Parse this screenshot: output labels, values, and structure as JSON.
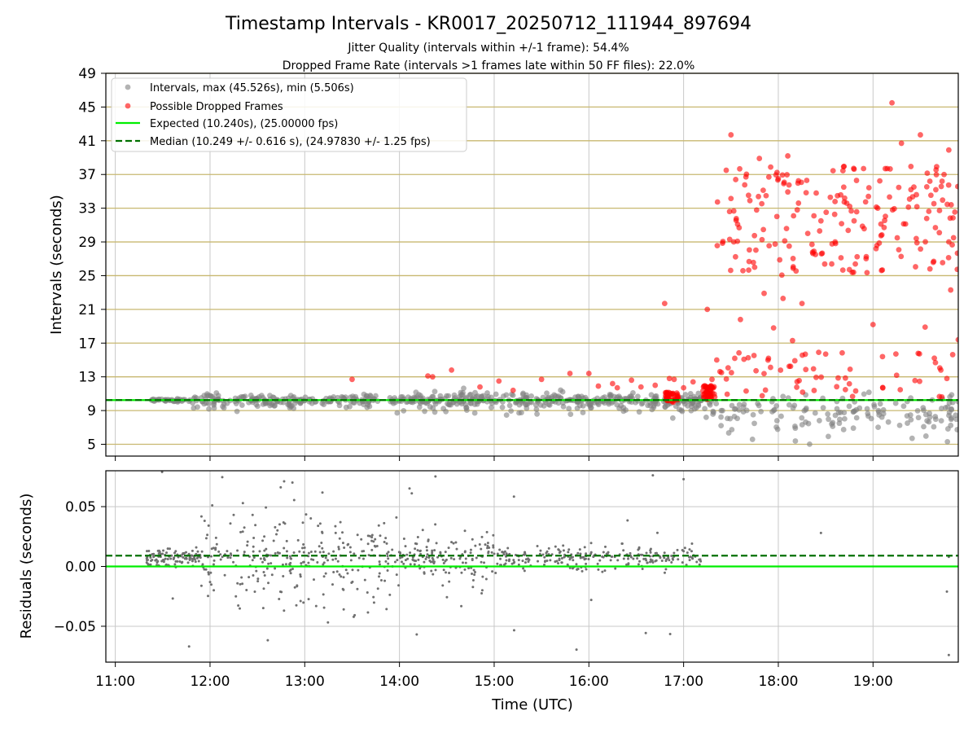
{
  "chart_data": [
    {
      "type": "scatter",
      "panel": "intervals",
      "title": "Timestamp Intervals - KR0017_20250712_111944_897694",
      "subtitle_lines": [
        "Jitter Quality (intervals within +/-1 frame): 54.4%",
        "Dropped Frame Rate (intervals >1 frames late within 50 FF files): 22.0%"
      ],
      "ylabel": "Intervals (seconds)",
      "xlim_hours": [
        10.9,
        19.9
      ],
      "ylim": [
        3.6,
        49
      ],
      "yticks": [
        5,
        9,
        13,
        17,
        21,
        25,
        29,
        33,
        37,
        41,
        45,
        49
      ],
      "grid": {
        "x": true,
        "y_color": "#c8b870"
      },
      "legend_position": "upper-left",
      "legend": [
        "Intervals, max (45.526s), min (5.506s)",
        "Possible Dropped Frames",
        "Expected (10.240s), (25.00000 fps)",
        "Median (10.249 +/- 0.616 s), (24.97830 +/- 1.25 fps)"
      ],
      "expected_interval_s": 10.24,
      "median_interval_s": 10.249,
      "max_interval_s": 45.526,
      "min_interval_s": 5.506,
      "series": [
        {
          "role": "intervals",
          "color": "#808080",
          "note": "dense band ~9.5-10.8 s from 11:20 to 17:20, scattered 5.5-11 s after 17:20",
          "bands": [
            {
              "t_start": 11.33,
              "t_end": 11.8,
              "center": 10.24,
              "spread": 0.15,
              "n": 30
            },
            {
              "t_start": 11.8,
              "t_end": 14.0,
              "center": 10.2,
              "spread": 0.7,
              "n": 180
            },
            {
              "t_start": 14.0,
              "t_end": 16.0,
              "center": 10.2,
              "spread": 0.8,
              "n": 220
            },
            {
              "t_start": 16.0,
              "t_end": 17.3,
              "center": 10.1,
              "spread": 0.9,
              "n": 140
            },
            {
              "t_start": 17.3,
              "t_end": 19.9,
              "center": 8.8,
              "spread": 1.8,
              "n": 150
            }
          ]
        },
        {
          "role": "dropped_frames",
          "color": "#ff0000",
          "points": [
            [
              13.5,
              12.7
            ],
            [
              14.3,
              13.1
            ],
            [
              14.35,
              13.0
            ],
            [
              14.55,
              13.8
            ],
            [
              14.85,
              11.8
            ],
            [
              15.05,
              12.5
            ],
            [
              15.2,
              11.4
            ],
            [
              15.5,
              12.7
            ],
            [
              15.8,
              13.4
            ],
            [
              16.0,
              13.4
            ],
            [
              16.1,
              11.9
            ],
            [
              16.25,
              12.2
            ],
            [
              16.3,
              11.7
            ],
            [
              16.45,
              12.6
            ],
            [
              16.55,
              11.8
            ],
            [
              16.7,
              12.0
            ],
            [
              16.8,
              21.7
            ],
            [
              16.85,
              12.8
            ],
            [
              16.9,
              12.7
            ],
            [
              17.0,
              11.7
            ],
            [
              17.1,
              12.4
            ],
            [
              17.25,
              21.0
            ],
            [
              17.3,
              12.7
            ],
            [
              17.35,
              15.0
            ],
            [
              17.4,
              13.5
            ],
            [
              17.45,
              37.5
            ],
            [
              17.5,
              41.7
            ],
            [
              17.55,
              36.4
            ],
            [
              17.6,
              19.8
            ],
            [
              17.7,
              33.9
            ],
            [
              17.75,
              26.0
            ],
            [
              17.8,
              38.9
            ],
            [
              17.85,
              22.9
            ],
            [
              17.9,
              36.7
            ],
            [
              17.95,
              18.8
            ],
            [
              18.0,
              36.5
            ],
            [
              18.05,
              22.3
            ],
            [
              18.1,
              39.2
            ],
            [
              18.15,
              17.3
            ],
            [
              18.2,
              32.8
            ],
            [
              18.25,
              21.7
            ],
            [
              18.3,
              36.3
            ],
            [
              18.4,
              34.8
            ],
            [
              18.45,
              31.5
            ],
            [
              18.5,
              15.7
            ],
            [
              18.6,
              29.0
            ],
            [
              18.7,
              34.2
            ],
            [
              18.8,
              31.5
            ],
            [
              18.9,
              37.7
            ],
            [
              19.0,
              19.2
            ],
            [
              19.05,
              33.0
            ],
            [
              19.1,
              15.4
            ],
            [
              19.15,
              37.7
            ],
            [
              19.2,
              45.5
            ],
            [
              19.3,
              40.7
            ],
            [
              19.4,
              35.2
            ],
            [
              19.5,
              41.7
            ],
            [
              19.55,
              18.9
            ],
            [
              19.6,
              36.2
            ],
            [
              19.7,
              30.1
            ],
            [
              19.75,
              37.0
            ],
            [
              19.8,
              39.9
            ],
            [
              19.82,
              23.3
            ],
            [
              19.85,
              29.5
            ],
            [
              19.9,
              17.4
            ]
          ],
          "clusters": [
            {
              "t_start": 16.8,
              "t_end": 16.95,
              "ymin": 10.0,
              "ymax": 11.2,
              "n": 40
            },
            {
              "t_start": 17.2,
              "t_end": 17.33,
              "ymin": 10.3,
              "ymax": 12.0,
              "n": 45
            },
            {
              "t_start": 17.35,
              "t_end": 19.9,
              "ymin": 25.0,
              "ymax": 38.0,
              "n": 180
            },
            {
              "t_start": 17.35,
              "t_end": 19.9,
              "ymin": 10.4,
              "ymax": 16.0,
              "n": 60
            }
          ]
        }
      ]
    },
    {
      "type": "scatter",
      "panel": "residuals",
      "ylabel": "Residuals (seconds)",
      "xlabel": "Time (UTC)",
      "xlim_hours": [
        10.9,
        19.9
      ],
      "ylim": [
        -0.08,
        0.08
      ],
      "yticks": [
        -0.05,
        0.0,
        0.05
      ],
      "ytick_labels": [
        "−0.05",
        "0.00",
        "0.05"
      ],
      "xticks_hours": [
        11,
        12,
        13,
        14,
        15,
        16,
        17,
        18,
        19
      ],
      "xtick_labels": [
        "11:00",
        "12:00",
        "13:00",
        "14:00",
        "15:00",
        "16:00",
        "17:00",
        "18:00",
        "19:00"
      ],
      "grid": {
        "x": true,
        "y": true
      },
      "expected_residual": 0.0,
      "median_residual": 0.009,
      "series": [
        {
          "role": "residuals",
          "color": "#707070",
          "note": "dense band around 0.00-0.015 from 11:20 to 17:15, wider spread 12:00-14:00",
          "bands": [
            {
              "t_start": 11.33,
              "t_end": 11.9,
              "center": 0.007,
              "spread": 0.006,
              "n": 120
            },
            {
              "t_start": 11.9,
              "t_end": 14.0,
              "center": 0.006,
              "spread": 0.03,
              "n": 300
            },
            {
              "t_start": 14.0,
              "t_end": 15.0,
              "center": 0.006,
              "spread": 0.015,
              "n": 150
            },
            {
              "t_start": 15.0,
              "t_end": 17.2,
              "center": 0.007,
              "spread": 0.008,
              "n": 250
            }
          ],
          "points": [
            [
              18.45,
              0.028
            ],
            [
              19.78,
              -0.021
            ],
            [
              19.8,
              -0.074
            ],
            [
              19.8,
              0.008
            ]
          ]
        }
      ]
    }
  ]
}
